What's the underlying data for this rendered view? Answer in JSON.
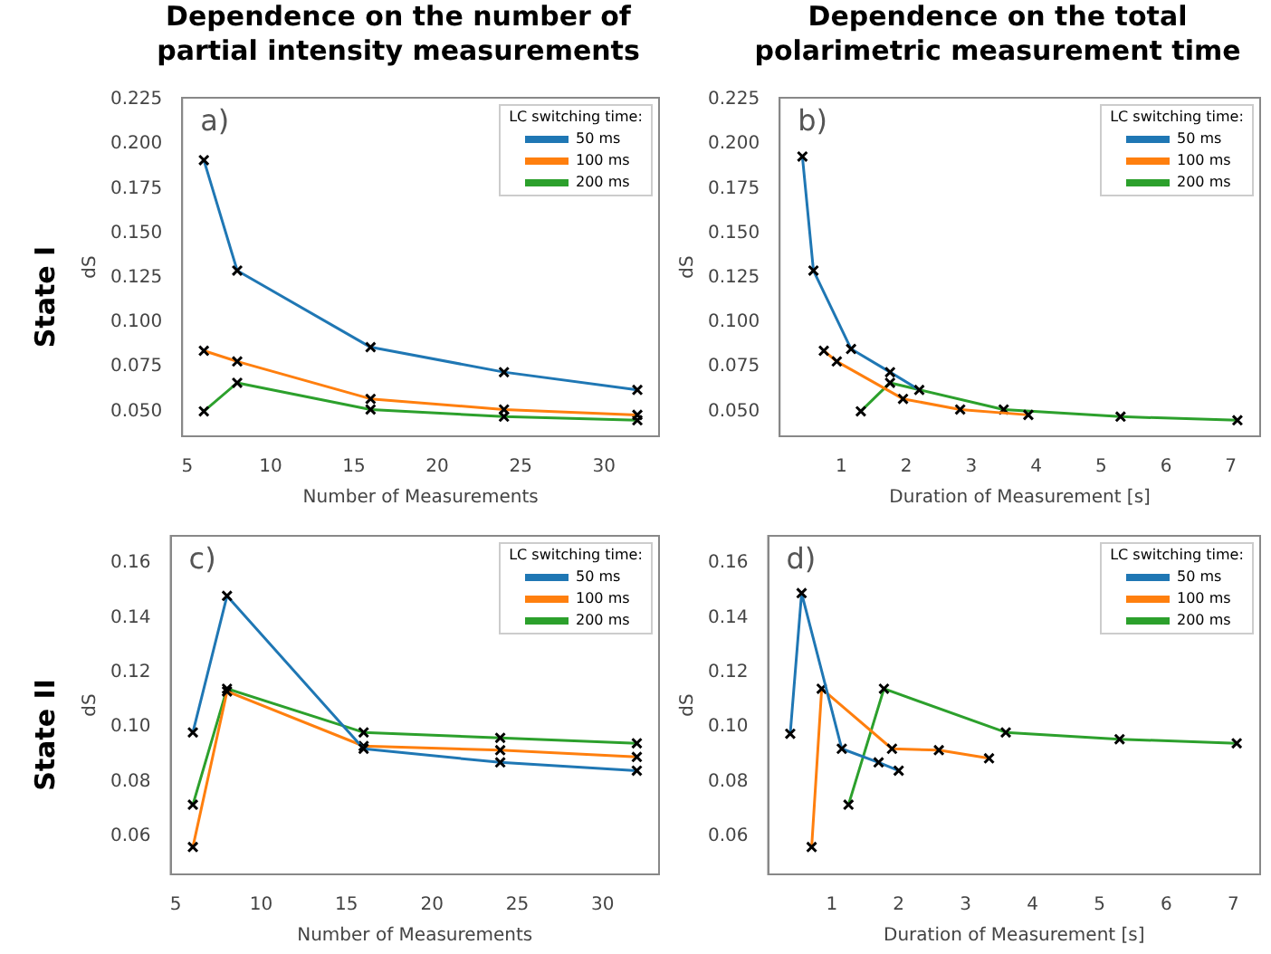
{
  "chart_data": [
    {
      "type": "line",
      "title": "Dependence on the number of partial intensity measurements",
      "xlabel": "Number of Measurements",
      "ylabel": "dS",
      "legend_title": "LC switching time:",
      "legend": "top right",
      "marker": "cross",
      "grid": false,
      "annotations": [
        "a)",
        "State I"
      ],
      "x": [
        6,
        8,
        16,
        24,
        32
      ],
      "xlim": [
        4.7,
        33.3
      ],
      "xticks": [
        5,
        10,
        15,
        20,
        25,
        30
      ],
      "ylim": [
        0.036,
        0.226
      ],
      "yticks": [
        {
          "value": 0.05,
          "label": "0.050"
        },
        {
          "value": 0.075,
          "label": "0.075"
        },
        {
          "value": 0.1,
          "label": "0.100"
        },
        {
          "value": 0.125,
          "label": "0.125"
        },
        {
          "value": 0.15,
          "label": "0.150"
        },
        {
          "value": 0.175,
          "label": "0.175"
        },
        {
          "value": 0.2,
          "label": "0.200"
        },
        {
          "value": 0.225,
          "label": "0.225"
        }
      ],
      "series": [
        {
          "name": "50 ms",
          "color": "#1f77b4",
          "values": [
            0.191,
            0.129,
            0.086,
            0.072,
            0.062
          ]
        },
        {
          "name": "100 ms",
          "color": "#ff7f0e",
          "values": [
            0.084,
            0.078,
            0.057,
            0.051,
            0.048
          ]
        },
        {
          "name": "200 ms",
          "color": "#2ca02c",
          "values": [
            0.05,
            0.066,
            0.051,
            0.047,
            0.045
          ]
        }
      ]
    },
    {
      "type": "line",
      "title": "Dependence on the total polarimetric measurement time",
      "xlabel": "Duration of Measurement [s]",
      "ylabel": "dS",
      "legend_title": "LC switching time:",
      "legend": "top right",
      "marker": "cross",
      "grid": false,
      "annotations": [
        "b)"
      ],
      "xlim": [
        0.05,
        7.45
      ],
      "xticks": [
        1,
        2,
        3,
        4,
        5,
        6,
        7
      ],
      "ylim": [
        0.036,
        0.226
      ],
      "yticks": [
        {
          "value": 0.05,
          "label": "0.050"
        },
        {
          "value": 0.075,
          "label": "0.075"
        },
        {
          "value": 0.1,
          "label": "0.100"
        },
        {
          "value": 0.125,
          "label": "0.125"
        },
        {
          "value": 0.15,
          "label": "0.150"
        },
        {
          "value": 0.175,
          "label": "0.175"
        },
        {
          "value": 0.2,
          "label": "0.200"
        },
        {
          "value": 0.225,
          "label": "0.225"
        }
      ],
      "series": [
        {
          "name": "50 ms",
          "color": "#1f77b4",
          "x": [
            0.4,
            0.57,
            1.15,
            1.75,
            2.2
          ],
          "values": [
            0.193,
            0.129,
            0.085,
            0.072,
            0.062
          ]
        },
        {
          "name": "100 ms",
          "color": "#ff7f0e",
          "x": [
            0.73,
            0.93,
            1.95,
            2.83,
            3.88
          ],
          "values": [
            0.084,
            0.078,
            0.057,
            0.051,
            0.048
          ]
        },
        {
          "name": "200 ms",
          "color": "#2ca02c",
          "x": [
            1.3,
            1.75,
            3.5,
            5.3,
            7.1
          ],
          "values": [
            0.05,
            0.066,
            0.051,
            0.047,
            0.045
          ]
        }
      ]
    },
    {
      "type": "line",
      "xlabel": "Number of Measurements",
      "ylabel": "dS",
      "legend_title": "LC switching time:",
      "legend": "top right",
      "marker": "cross",
      "grid": false,
      "annotations": [
        "c)",
        "State II"
      ],
      "x": [
        6,
        8,
        16,
        24,
        32
      ],
      "xlim": [
        4.7,
        33.3
      ],
      "xticks": [
        5,
        10,
        15,
        20,
        25,
        30
      ],
      "ylim": [
        0.046,
        0.17
      ],
      "yticks": [
        {
          "value": 0.06,
          "label": "0.06"
        },
        {
          "value": 0.08,
          "label": "0.08"
        },
        {
          "value": 0.1,
          "label": "0.10"
        },
        {
          "value": 0.12,
          "label": "0.12"
        },
        {
          "value": 0.14,
          "label": "0.14"
        },
        {
          "value": 0.16,
          "label": "0.16"
        }
      ],
      "series": [
        {
          "name": "50 ms",
          "color": "#1f77b4",
          "values": [
            0.098,
            0.148,
            0.092,
            0.087,
            0.084
          ]
        },
        {
          "name": "100 ms",
          "color": "#ff7f0e",
          "values": [
            0.056,
            0.113,
            0.093,
            0.0915,
            0.089
          ]
        },
        {
          "name": "200 ms",
          "color": "#2ca02c",
          "values": [
            0.0715,
            0.114,
            0.098,
            0.096,
            0.094
          ]
        }
      ]
    },
    {
      "type": "line",
      "xlabel": "Duration of Measurement [s]",
      "ylabel": "dS",
      "legend_title": "LC switching time:",
      "legend": "top right",
      "marker": "cross",
      "grid": false,
      "annotations": [
        "d)"
      ],
      "xlim": [
        0.05,
        7.4
      ],
      "xticks": [
        1,
        2,
        3,
        4,
        5,
        6,
        7
      ],
      "ylim": [
        0.046,
        0.17
      ],
      "yticks": [
        {
          "value": 0.06,
          "label": "0.06"
        },
        {
          "value": 0.08,
          "label": "0.08"
        },
        {
          "value": 0.1,
          "label": "0.10"
        },
        {
          "value": 0.12,
          "label": "0.12"
        },
        {
          "value": 0.14,
          "label": "0.14"
        },
        {
          "value": 0.16,
          "label": "0.16"
        }
      ],
      "series": [
        {
          "name": "50 ms",
          "color": "#1f77b4",
          "x": [
            0.38,
            0.55,
            1.15,
            1.7,
            2.0
          ],
          "values": [
            0.0975,
            0.149,
            0.092,
            0.087,
            0.084
          ]
        },
        {
          "name": "100 ms",
          "color": "#ff7f0e",
          "x": [
            0.7,
            0.85,
            1.9,
            2.6,
            3.35
          ],
          "values": [
            0.056,
            0.114,
            0.092,
            0.0915,
            0.0885
          ]
        },
        {
          "name": "200 ms",
          "color": "#2ca02c",
          "x": [
            1.25,
            1.78,
            3.6,
            5.3,
            7.05
          ],
          "values": [
            0.0715,
            0.114,
            0.098,
            0.0955,
            0.094
          ]
        }
      ]
    }
  ]
}
